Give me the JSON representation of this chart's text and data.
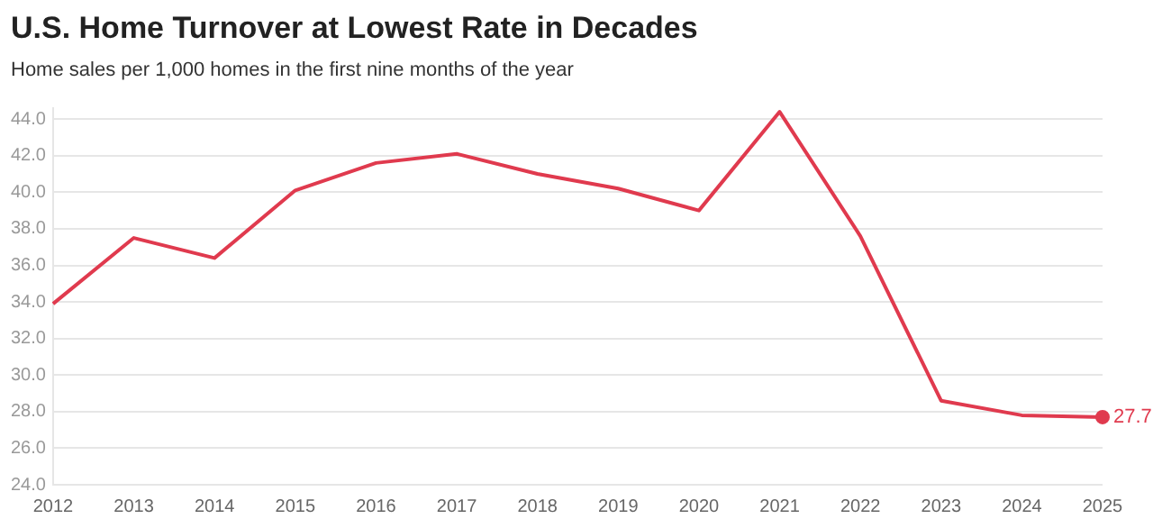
{
  "chart_data": {
    "type": "line",
    "title": "U.S. Home Turnover at Lowest Rate in Decades",
    "subtitle": "Home sales per 1,000 homes in the first nine months of the year",
    "categories": [
      "2012",
      "2013",
      "2014",
      "2015",
      "2016",
      "2017",
      "2018",
      "2019",
      "2020",
      "2021",
      "2022",
      "2023",
      "2024",
      "2025"
    ],
    "series": [
      {
        "color": "#e03a4e",
        "values": [
          33.9,
          37.5,
          36.4,
          40.1,
          41.6,
          42.1,
          41.0,
          40.2,
          39.0,
          44.4,
          37.6,
          28.6,
          27.8,
          27.7
        ],
        "value_labels": [
          null,
          null,
          null,
          null,
          null,
          null,
          null,
          null,
          null,
          null,
          null,
          null,
          null,
          "27.7"
        ]
      }
    ],
    "ylim": [
      24,
      44.6
    ],
    "yticks": [
      {
        "value": 24,
        "label": "24.0"
      },
      {
        "value": 26,
        "label": "26.0"
      },
      {
        "value": 28,
        "label": "28.0"
      },
      {
        "value": 30,
        "label": "30.0"
      },
      {
        "value": 32,
        "label": "32.0"
      },
      {
        "value": 34,
        "label": "34.0"
      },
      {
        "value": 36,
        "label": "36.0"
      },
      {
        "value": 38,
        "label": "38.0"
      },
      {
        "value": 40,
        "label": "40.0"
      },
      {
        "value": 42,
        "label": "42.0"
      },
      {
        "value": 44,
        "label": "44.0"
      }
    ],
    "grid": "y",
    "legend": false
  }
}
